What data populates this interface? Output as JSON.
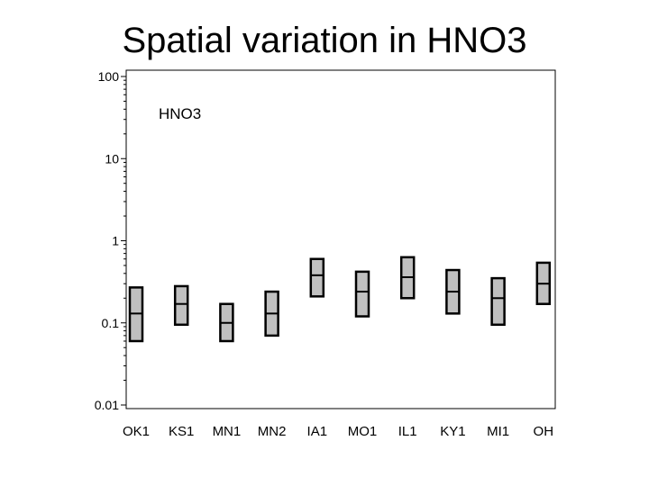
{
  "title": "Spatial variation in HNO3",
  "chart_data": {
    "type": "box",
    "annotation": "HNO3",
    "y_scale": "log",
    "ylim": [
      0.01,
      100
    ],
    "y_ticks": [
      {
        "value": 100,
        "label": "100"
      },
      {
        "value": 10,
        "label": "10"
      },
      {
        "value": 1,
        "label": "1"
      },
      {
        "value": 0.1,
        "label": "0.1"
      },
      {
        "value": 0.01,
        "label": "0.01"
      }
    ],
    "categories": [
      "OK1",
      "KS1",
      "MN1",
      "MN2",
      "IA1",
      "MO1",
      "IL1",
      "KY1",
      "MI1",
      "OH"
    ],
    "boxes": [
      {
        "low": 0.06,
        "median": 0.13,
        "high": 0.27
      },
      {
        "low": 0.095,
        "median": 0.17,
        "high": 0.28
      },
      {
        "low": 0.06,
        "median": 0.1,
        "high": 0.17
      },
      {
        "low": 0.07,
        "median": 0.13,
        "high": 0.24
      },
      {
        "low": 0.21,
        "median": 0.38,
        "high": 0.6
      },
      {
        "low": 0.12,
        "median": 0.24,
        "high": 0.42
      },
      {
        "low": 0.2,
        "median": 0.36,
        "high": 0.63
      },
      {
        "low": 0.13,
        "median": 0.24,
        "high": 0.44
      },
      {
        "low": 0.095,
        "median": 0.2,
        "high": 0.35
      },
      {
        "low": 0.17,
        "median": 0.3,
        "high": 0.54
      }
    ],
    "box_fill": "#c0c0c0",
    "grid": false
  }
}
